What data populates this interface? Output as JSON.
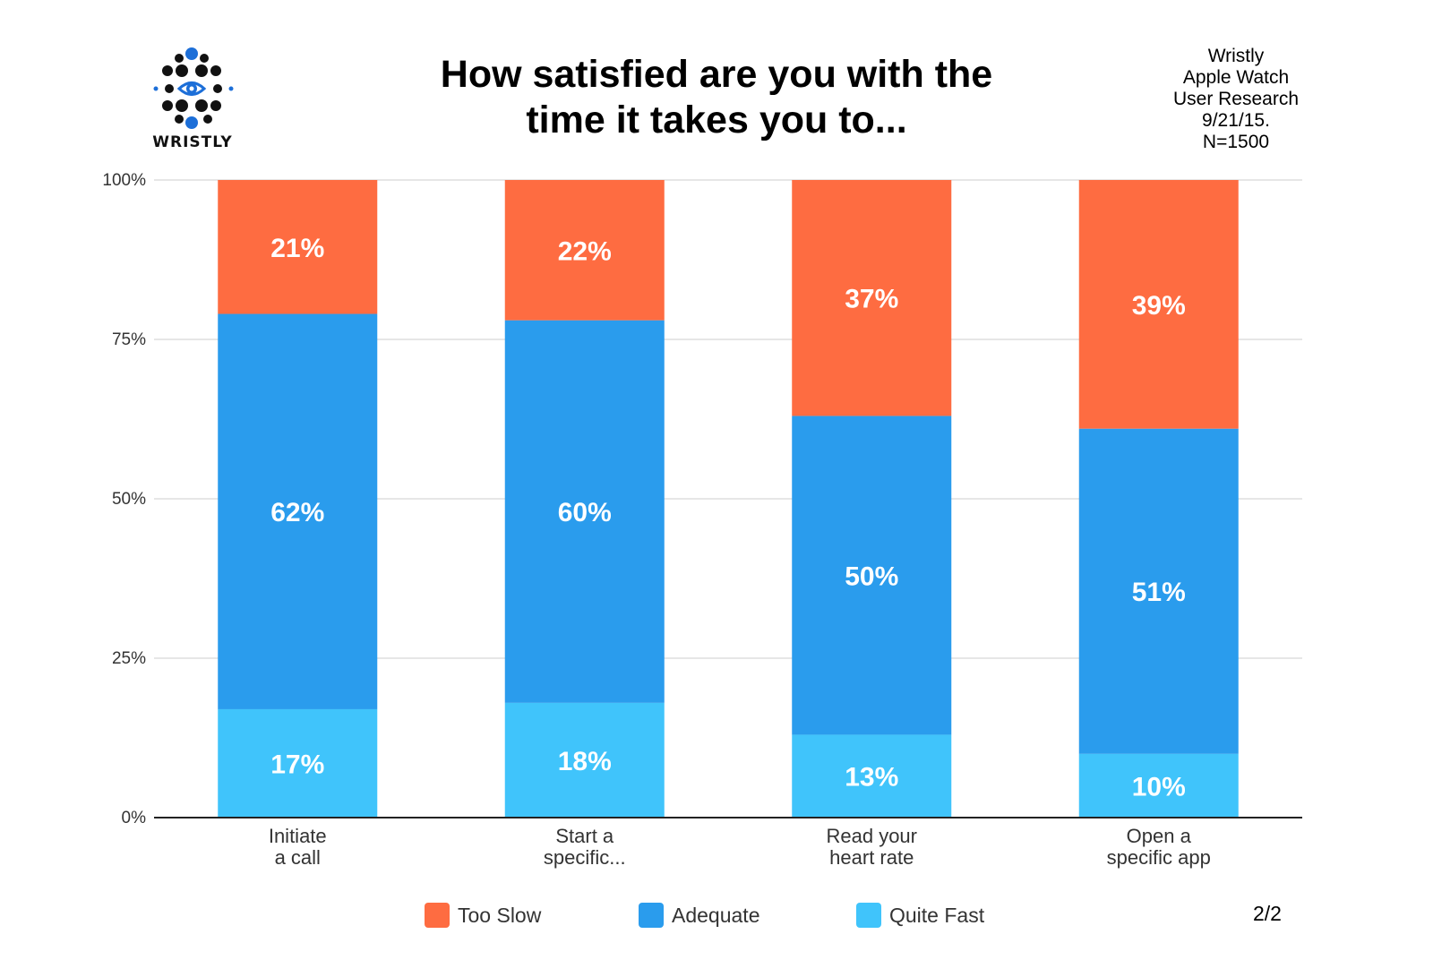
{
  "brand": {
    "name": "WRISTLY",
    "logo_icon": "dotted-eye-logo",
    "colors": {
      "dot_dark": "#111111",
      "dot_accent": "#1d6fd8"
    }
  },
  "meta": {
    "lines": [
      "Wristly",
      "Apple Watch",
      "User Research",
      "9/21/15.",
      "N=1500"
    ]
  },
  "page_indicator": "2/2",
  "chart_data": {
    "type": "bar",
    "stacked": true,
    "percent_stacked": true,
    "title_lines": [
      "How satisfied are you with the",
      "time it takes you to..."
    ],
    "title": "How satisfied are you with the time it takes you to...",
    "categories": [
      [
        "Initiate",
        "a call"
      ],
      [
        "Start a",
        "specific..."
      ],
      [
        "Read your",
        "heart rate"
      ],
      [
        "Open a",
        "specific app"
      ]
    ],
    "series": [
      {
        "name": "Quite Fast",
        "color": "#40c4fb",
        "values": [
          17,
          18,
          13,
          10
        ],
        "labels": [
          "17%",
          "18%",
          "13%",
          "10%"
        ]
      },
      {
        "name": "Adequate",
        "color": "#2a9ced",
        "values": [
          62,
          60,
          50,
          51
        ],
        "labels": [
          "62%",
          "60%",
          "50%",
          "51%"
        ]
      },
      {
        "name": "Too Slow",
        "color": "#fe6c41",
        "values": [
          21,
          22,
          37,
          39
        ],
        "labels": [
          "21%",
          "22%",
          "37%",
          "39%"
        ]
      }
    ],
    "legend_order": [
      "Too Slow",
      "Adequate",
      "Quite Fast"
    ],
    "legend_position": "bottom",
    "ylim": [
      0,
      100
    ],
    "yticks": [
      0,
      25,
      50,
      75,
      100
    ],
    "ytick_labels": [
      "0%",
      "25%",
      "50%",
      "75%",
      "100%"
    ],
    "grid": true,
    "xlabel": "",
    "ylabel": ""
  }
}
